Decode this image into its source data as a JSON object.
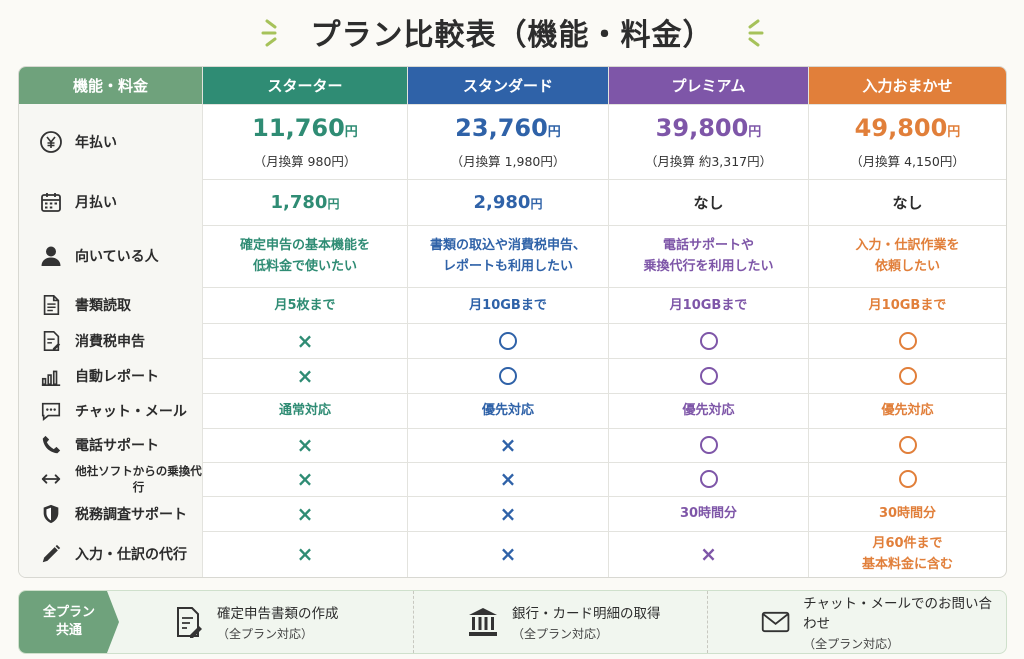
{
  "title": "プラン比較表（機能・料金）",
  "colors": {
    "starter": "#2f8c74",
    "standard": "#2f62a8",
    "premium": "#7e56a8",
    "omakase": "#e17f3a",
    "feature_header": "#6fa27c"
  },
  "header": {
    "feature": "機能・料金",
    "plans": [
      "スターター",
      "スタンダード",
      "プレミアム",
      "入力おまかせ"
    ]
  },
  "rows": {
    "annual": {
      "label": "年払い",
      "icon": "yen-icon",
      "prices": [
        "11,760",
        "23,760",
        "39,800",
        "49,800"
      ],
      "unit": "円",
      "monthly_equiv": [
        "（月換算 980円）",
        "（月換算 1,980円）",
        "（月換算 約3,317円）",
        "（月換算 4,150円）"
      ]
    },
    "monthly": {
      "label": "月払い",
      "icon": "calendar-icon",
      "prices": [
        "1,780",
        "2,980"
      ],
      "unit": "円",
      "none": [
        "なし",
        "なし"
      ]
    },
    "target": {
      "label": "向いている人",
      "icon": "person-icon",
      "lines": [
        [
          "確定申告の基本機能を",
          "低料金で使いたい"
        ],
        [
          "書類の取込や消費税申告、",
          "レポートも利用したい"
        ],
        [
          "電話サポートや",
          "乗換代行を利用したい"
        ],
        [
          "入力・仕訳作業を",
          "依頼したい"
        ]
      ]
    },
    "doc_read": {
      "label": "書類読取",
      "icon": "document-icon",
      "values": [
        "月5枚まで",
        "月10GBまで",
        "月10GBまで",
        "月10GBまで"
      ]
    },
    "consumption_tax": {
      "label": "消費税申告",
      "icon": "tax-form-icon",
      "values": [
        "×",
        "○",
        "○",
        "○"
      ]
    },
    "auto_report": {
      "label": "自動レポート",
      "icon": "bar-chart-icon",
      "values": [
        "×",
        "○",
        "○",
        "○"
      ]
    },
    "chat_mail": {
      "label": "チャット・メール",
      "icon": "chat-icon",
      "values": [
        "通常対応",
        "優先対応",
        "優先対応",
        "優先対応"
      ]
    },
    "phone": {
      "label": "電話サポート",
      "icon": "phone-icon",
      "values": [
        "×",
        "×",
        "○",
        "○"
      ]
    },
    "migration": {
      "label": "他社ソフトからの乗換代行",
      "icon": "transfer-icon",
      "values": [
        "×",
        "×",
        "○",
        "○"
      ]
    },
    "audit": {
      "label": "税務調査サポート",
      "icon": "shield-icon",
      "values": [
        "×",
        "×",
        "30時間分",
        "30時間分"
      ]
    },
    "entry": {
      "label": "入力・仕訳の代行",
      "icon": "pen-icon",
      "values": [
        "×",
        "×",
        "×"
      ],
      "omakase_lines": [
        "月60件まで",
        "基本料金に含む"
      ]
    }
  },
  "footer": {
    "tag_lines": [
      "全プラン",
      "共通"
    ],
    "items": [
      {
        "main": "確定申告書類の作成",
        "sub": "（全プラン対応）",
        "icon": "document-edit-icon"
      },
      {
        "main": "銀行・カード明細の取得",
        "sub": "（全プラン対応）",
        "icon": "bank-icon"
      },
      {
        "main": "チャット・メールでのお問い合わせ",
        "sub": "（全プラン対応）",
        "icon": "mail-icon"
      }
    ]
  }
}
